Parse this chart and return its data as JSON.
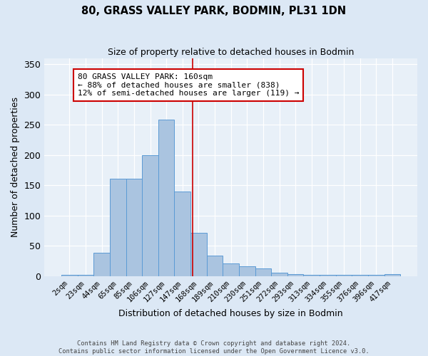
{
  "title": "80, GRASS VALLEY PARK, BODMIN, PL31 1DN",
  "subtitle": "Size of property relative to detached houses in Bodmin",
  "xlabel": "Distribution of detached houses by size in Bodmin",
  "ylabel": "Number of detached properties",
  "categories": [
    "2sqm",
    "23sqm",
    "44sqm",
    "65sqm",
    "85sqm",
    "106sqm",
    "127sqm",
    "147sqm",
    "168sqm",
    "189sqm",
    "210sqm",
    "230sqm",
    "251sqm",
    "272sqm",
    "293sqm",
    "313sqm",
    "334sqm",
    "355sqm",
    "376sqm",
    "396sqm",
    "417sqm"
  ],
  "bar_heights": [
    2,
    2,
    39,
    161,
    161,
    200,
    258,
    140,
    72,
    34,
    21,
    16,
    13,
    5,
    3,
    2,
    2,
    2,
    2,
    2,
    3
  ],
  "vline_pos": 7.62,
  "bar_color": "#aac4e0",
  "bar_edge_color": "#5b9bd5",
  "vline_color": "#cc0000",
  "bg_color": "#e8f0f8",
  "fig_bg_color": "#dce8f5",
  "annotation_text": "80 GRASS VALLEY PARK: 160sqm\n← 88% of detached houses are smaller (838)\n12% of semi-detached houses are larger (119) →",
  "annotation_box_color": "#ffffff",
  "annotation_box_edge": "#cc0000",
  "footer1": "Contains HM Land Registry data © Crown copyright and database right 2024.",
  "footer2": "Contains public sector information licensed under the Open Government Licence v3.0.",
  "ylim": [
    0,
    360
  ],
  "yticks": [
    0,
    50,
    100,
    150,
    200,
    250,
    300,
    350
  ]
}
